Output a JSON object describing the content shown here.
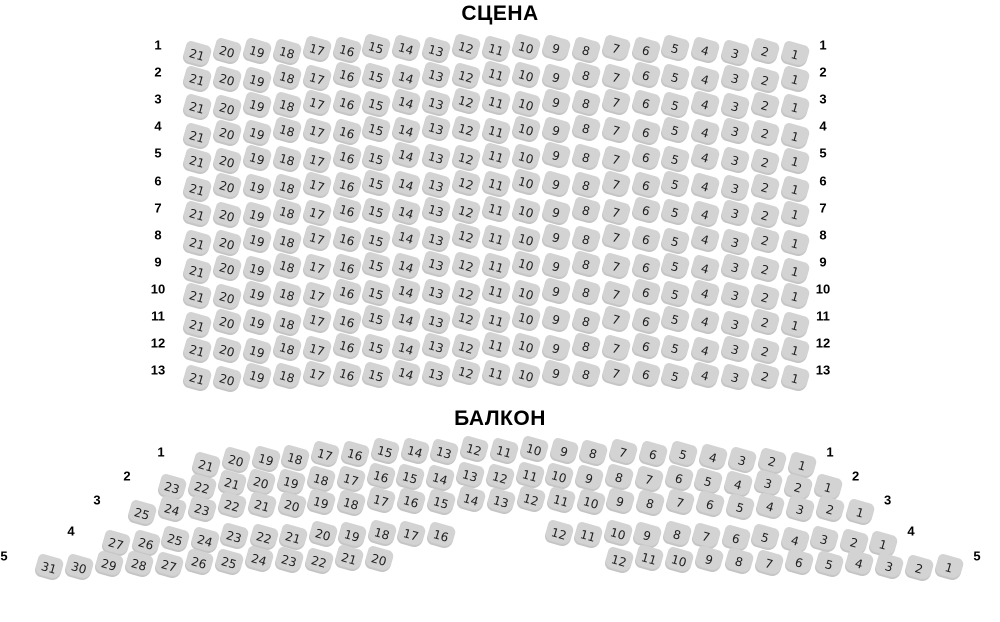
{
  "stage_title": "СЦЕНА",
  "balcony_title": "БАЛКОН",
  "colors": {
    "background": "#ffffff",
    "seat_fill": "#d3d3d3",
    "seat_text": "#1f1f1f",
    "label_text": "#000000"
  },
  "main_section": {
    "rows": [
      {
        "label": "1",
        "seats": [
          21,
          20,
          19,
          18,
          17,
          16,
          15,
          14,
          13,
          12,
          11,
          10,
          9,
          8,
          7,
          6,
          5,
          4,
          3,
          2,
          1
        ]
      },
      {
        "label": "2",
        "seats": [
          21,
          20,
          19,
          18,
          17,
          16,
          15,
          14,
          13,
          12,
          11,
          10,
          9,
          8,
          7,
          6,
          5,
          4,
          3,
          2,
          1
        ]
      },
      {
        "label": "3",
        "seats": [
          21,
          20,
          19,
          18,
          17,
          16,
          15,
          14,
          13,
          12,
          11,
          10,
          9,
          8,
          7,
          6,
          5,
          4,
          3,
          2,
          1
        ]
      },
      {
        "label": "4",
        "seats": [
          21,
          20,
          19,
          18,
          17,
          16,
          15,
          14,
          13,
          12,
          11,
          10,
          9,
          8,
          7,
          6,
          5,
          4,
          3,
          2,
          1
        ]
      },
      {
        "label": "5",
        "seats": [
          21,
          20,
          19,
          18,
          17,
          16,
          15,
          14,
          13,
          12,
          11,
          10,
          9,
          8,
          7,
          6,
          5,
          4,
          3,
          2,
          1
        ]
      },
      {
        "label": "6",
        "seats": [
          21,
          20,
          19,
          18,
          17,
          16,
          15,
          14,
          13,
          12,
          11,
          10,
          9,
          8,
          7,
          6,
          5,
          4,
          3,
          2,
          1
        ]
      },
      {
        "label": "7",
        "seats": [
          21,
          20,
          19,
          18,
          17,
          16,
          15,
          14,
          13,
          12,
          11,
          10,
          9,
          8,
          7,
          6,
          5,
          4,
          3,
          2,
          1
        ]
      },
      {
        "label": "8",
        "seats": [
          21,
          20,
          19,
          18,
          17,
          16,
          15,
          14,
          13,
          12,
          11,
          10,
          9,
          8,
          7,
          6,
          5,
          4,
          3,
          2,
          1
        ]
      },
      {
        "label": "9",
        "seats": [
          21,
          20,
          19,
          18,
          17,
          16,
          15,
          14,
          13,
          12,
          11,
          10,
          9,
          8,
          7,
          6,
          5,
          4,
          3,
          2,
          1
        ]
      },
      {
        "label": "10",
        "seats": [
          21,
          20,
          19,
          18,
          17,
          16,
          15,
          14,
          13,
          12,
          11,
          10,
          9,
          8,
          7,
          6,
          5,
          4,
          3,
          2,
          1
        ]
      },
      {
        "label": "11",
        "seats": [
          21,
          20,
          19,
          18,
          17,
          16,
          15,
          14,
          13,
          12,
          11,
          10,
          9,
          8,
          7,
          6,
          5,
          4,
          3,
          2,
          1
        ]
      },
      {
        "label": "12",
        "seats": [
          21,
          20,
          19,
          18,
          17,
          16,
          15,
          14,
          13,
          12,
          11,
          10,
          9,
          8,
          7,
          6,
          5,
          4,
          3,
          2,
          1
        ]
      },
      {
        "label": "13",
        "seats": [
          21,
          20,
          19,
          18,
          17,
          16,
          15,
          14,
          13,
          12,
          11,
          10,
          9,
          8,
          7,
          6,
          5,
          4,
          3,
          2,
          1
        ]
      }
    ]
  },
  "balcony_section": {
    "rows": [
      {
        "label": "1",
        "segments": [
          {
            "seats": [
              21,
              20,
              19,
              18,
              17,
              16,
              15,
              14,
              13,
              12,
              11,
              10,
              9,
              8,
              7,
              6,
              5,
              4,
              3,
              2,
              1
            ]
          }
        ]
      },
      {
        "label": "2",
        "segments": [
          {
            "seats": [
              23,
              22,
              21,
              20,
              19,
              18,
              17,
              16,
              15,
              14,
              13,
              12,
              11,
              10,
              9,
              8,
              7,
              6,
              5,
              4,
              3,
              2,
              1
            ]
          }
        ]
      },
      {
        "label": "3",
        "segments": [
          {
            "seats": [
              25,
              24,
              23,
              22,
              21,
              20,
              19,
              18,
              17,
              16,
              15,
              14,
              13,
              12,
              11,
              10,
              9,
              8,
              7,
              6,
              5,
              4,
              3,
              2,
              1
            ]
          }
        ]
      },
      {
        "label": "4",
        "segments": [
          {
            "seats": [
              27,
              26,
              25,
              24,
              23,
              22,
              21,
              20,
              19,
              18,
              17,
              16
            ]
          },
          {
            "seats": [
              12,
              11,
              10,
              9,
              8,
              7,
              6,
              5,
              4,
              3,
              2,
              1
            ]
          }
        ]
      },
      {
        "label": "5",
        "segments": [
          {
            "seats": [
              31,
              30,
              29,
              28,
              27,
              26,
              25,
              24,
              23,
              22,
              21,
              20
            ]
          },
          {
            "seats": [
              12,
              11,
              10,
              9,
              8,
              7,
              6,
              5,
              4,
              3,
              2,
              1
            ]
          }
        ]
      }
    ]
  }
}
